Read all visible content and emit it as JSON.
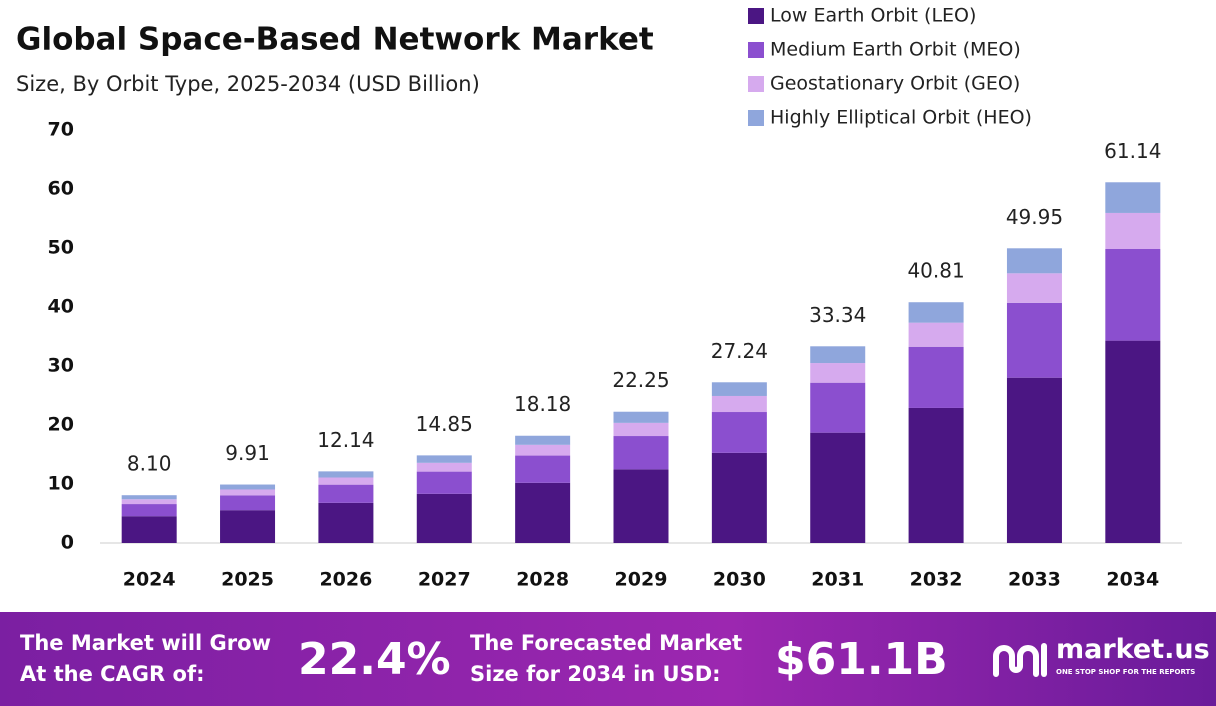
{
  "chart_data": {
    "type": "bar",
    "stacked": true,
    "title": "Global Space-Based Network Market",
    "subtitle": "Size, By Orbit Type, 2025-2034 (USD Billion)",
    "categories": [
      "2024",
      "2025",
      "2026",
      "2027",
      "2028",
      "2029",
      "2030",
      "2031",
      "2032",
      "2033",
      "2034"
    ],
    "series": [
      {
        "name": "Low Earth Orbit (LEO)",
        "color": "#4b1683",
        "values": [
          4.54,
          5.56,
          6.81,
          8.33,
          10.2,
          12.48,
          15.28,
          18.7,
          22.89,
          28.02,
          34.3
        ]
      },
      {
        "name": "Medium Earth Orbit (MEO)",
        "color": "#8b4fcf",
        "values": [
          2.06,
          2.52,
          3.08,
          3.77,
          4.62,
          5.65,
          6.92,
          8.47,
          10.37,
          12.69,
          15.53
        ]
      },
      {
        "name": "Geostationary Orbit (GEO)",
        "color": "#d6aaee",
        "values": [
          0.81,
          0.99,
          1.21,
          1.49,
          1.82,
          2.23,
          2.72,
          3.33,
          4.08,
          5.0,
          6.11
        ]
      },
      {
        "name": "Highly Elliptical Orbit (HEO)",
        "color": "#8fa6dc",
        "values": [
          0.69,
          0.84,
          1.04,
          1.26,
          1.54,
          1.89,
          2.32,
          2.84,
          3.47,
          4.24,
          5.2
        ]
      }
    ],
    "totals": [
      8.1,
      9.91,
      12.14,
      14.85,
      18.18,
      22.25,
      27.24,
      33.34,
      40.81,
      49.95,
      61.14
    ],
    "total_labels": [
      "8.10",
      "9.91",
      "12.14",
      "14.85",
      "18.18",
      "22.25",
      "27.24",
      "33.34",
      "40.81",
      "49.95",
      "61.14"
    ],
    "ylim": [
      0,
      70
    ],
    "yticks": [
      0,
      10,
      20,
      30,
      40,
      50,
      60,
      70
    ],
    "grid": false,
    "legend": "top-right"
  },
  "footer": {
    "cagr_text_1": "The Market will Grow",
    "cagr_text_2": "At the CAGR of:",
    "cagr": "22.4%",
    "forecast_text_1": "The Forecasted Market",
    "forecast_text_2": "Size for 2034 in USD:",
    "forecast": "$61.1B",
    "brand": "market.us",
    "tagline": "ONE STOP SHOP FOR THE REPORTS"
  }
}
